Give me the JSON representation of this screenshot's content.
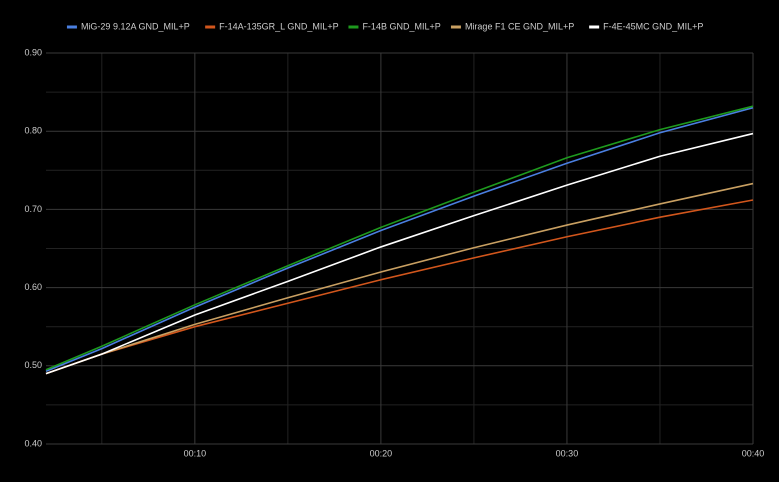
{
  "chart_data": {
    "type": "line",
    "x": [
      2,
      5,
      10,
      15,
      20,
      25,
      30,
      35,
      40
    ],
    "series": [
      {
        "name": "MiG-29 9.12A GND_MIL+P",
        "color": "#4a7fe0",
        "values": [
          0.493,
          0.522,
          0.575,
          0.625,
          0.673,
          0.717,
          0.759,
          0.798,
          0.83
        ]
      },
      {
        "name": "F-14A-135GR_L GND_MIL+P",
        "color": "#d2561c",
        "values": [
          0.49,
          0.515,
          0.55,
          0.58,
          0.61,
          0.638,
          0.665,
          0.69,
          0.712
        ]
      },
      {
        "name": "F-14B GND_MIL+P",
        "color": "#1e9a1e",
        "values": [
          0.495,
          0.525,
          0.578,
          0.628,
          0.677,
          0.722,
          0.766,
          0.802,
          0.832
        ]
      },
      {
        "name": "Mirage F1 CE GND_MIL+P",
        "color": "#c9a062",
        "values": [
          0.49,
          0.515,
          0.553,
          0.587,
          0.62,
          0.651,
          0.68,
          0.707,
          0.733
        ]
      },
      {
        "name": "F-4E-45MC GND_MIL+P",
        "color": "#ffffff",
        "values": [
          0.49,
          0.515,
          0.565,
          0.608,
          0.652,
          0.692,
          0.731,
          0.768,
          0.797
        ]
      }
    ],
    "xlim": [
      2,
      40
    ],
    "xticks": [
      {
        "value": 10,
        "label": "00:10"
      },
      {
        "value": 20,
        "label": "00:20"
      },
      {
        "value": 30,
        "label": "00:30"
      },
      {
        "value": 40,
        "label": "00:40"
      }
    ],
    "x_minor_ticks": [
      5,
      15,
      25,
      35
    ],
    "ylim": [
      0.4,
      0.9
    ],
    "yticks": [
      {
        "value": 0.4,
        "label": "0.40"
      },
      {
        "value": 0.5,
        "label": "0.50"
      },
      {
        "value": 0.6,
        "label": "0.60"
      },
      {
        "value": 0.7,
        "label": "0.70"
      },
      {
        "value": 0.8,
        "label": "0.80"
      },
      {
        "value": 0.9,
        "label": "0.90"
      }
    ],
    "y_minor_ticks": [
      0.45,
      0.55,
      0.65,
      0.75,
      0.85
    ],
    "grid": true
  }
}
